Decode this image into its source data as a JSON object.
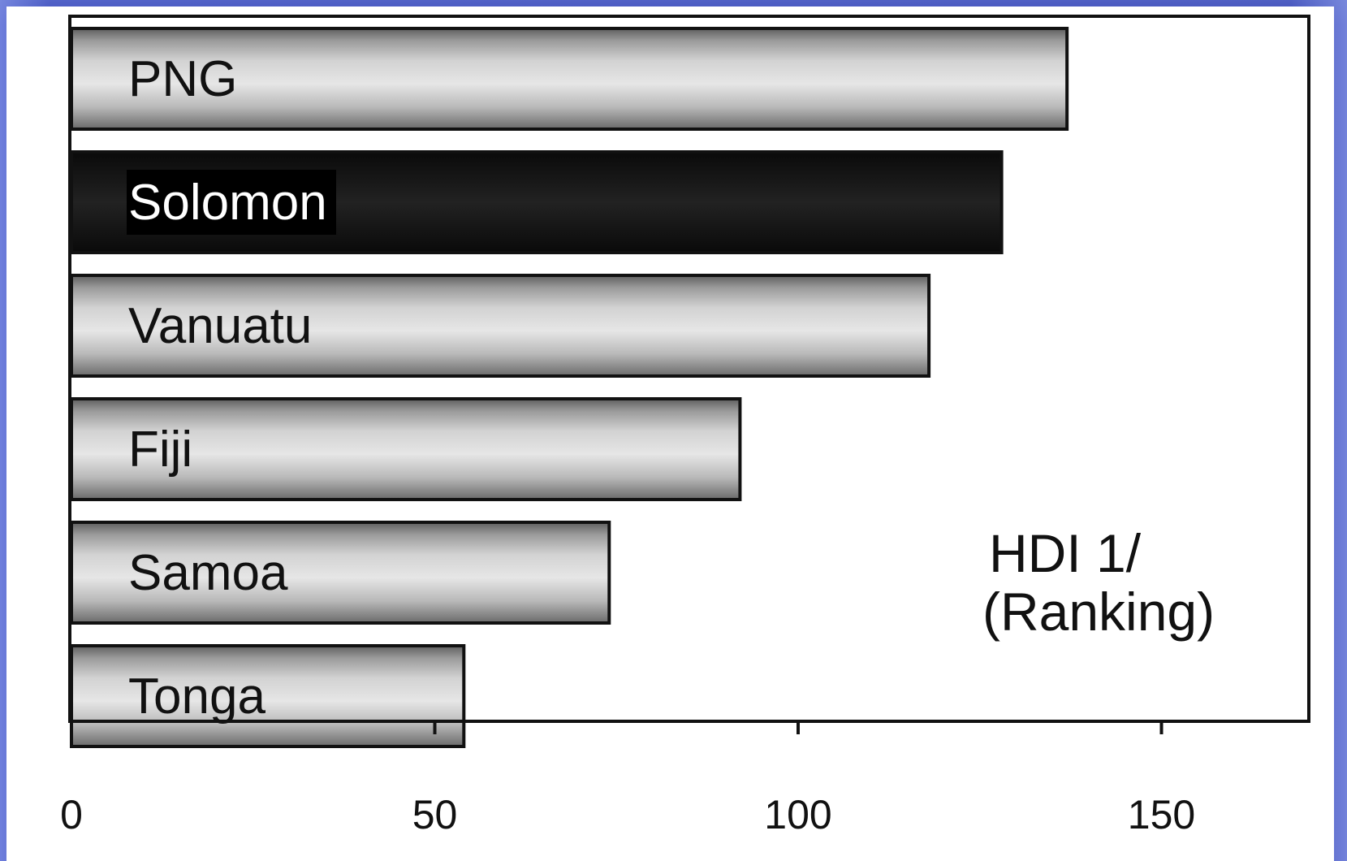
{
  "chart_data": {
    "type": "bar",
    "orientation": "horizontal",
    "categories": [
      "PNG",
      "Solomon",
      "Vanuatu",
      "Fiji",
      "Samoa",
      "Tonga"
    ],
    "values": [
      137,
      128,
      118,
      92,
      74,
      54
    ],
    "highlight": "Solomon",
    "xlim": [
      0,
      170
    ],
    "xticks": [
      "0",
      "50",
      "100",
      "150"
    ],
    "xtick_values": [
      0,
      50,
      100,
      150
    ],
    "annotation": [
      "HDI 1/",
      "(Ranking)"
    ],
    "grid": false,
    "legend": "none"
  },
  "colors": {
    "bar_fill": "#c4c4c4",
    "bar_shadow": "#6e6e6e",
    "highlight_fill": "#151515",
    "slide_background": "#3f4fbf",
    "panel": "#ffffff"
  }
}
